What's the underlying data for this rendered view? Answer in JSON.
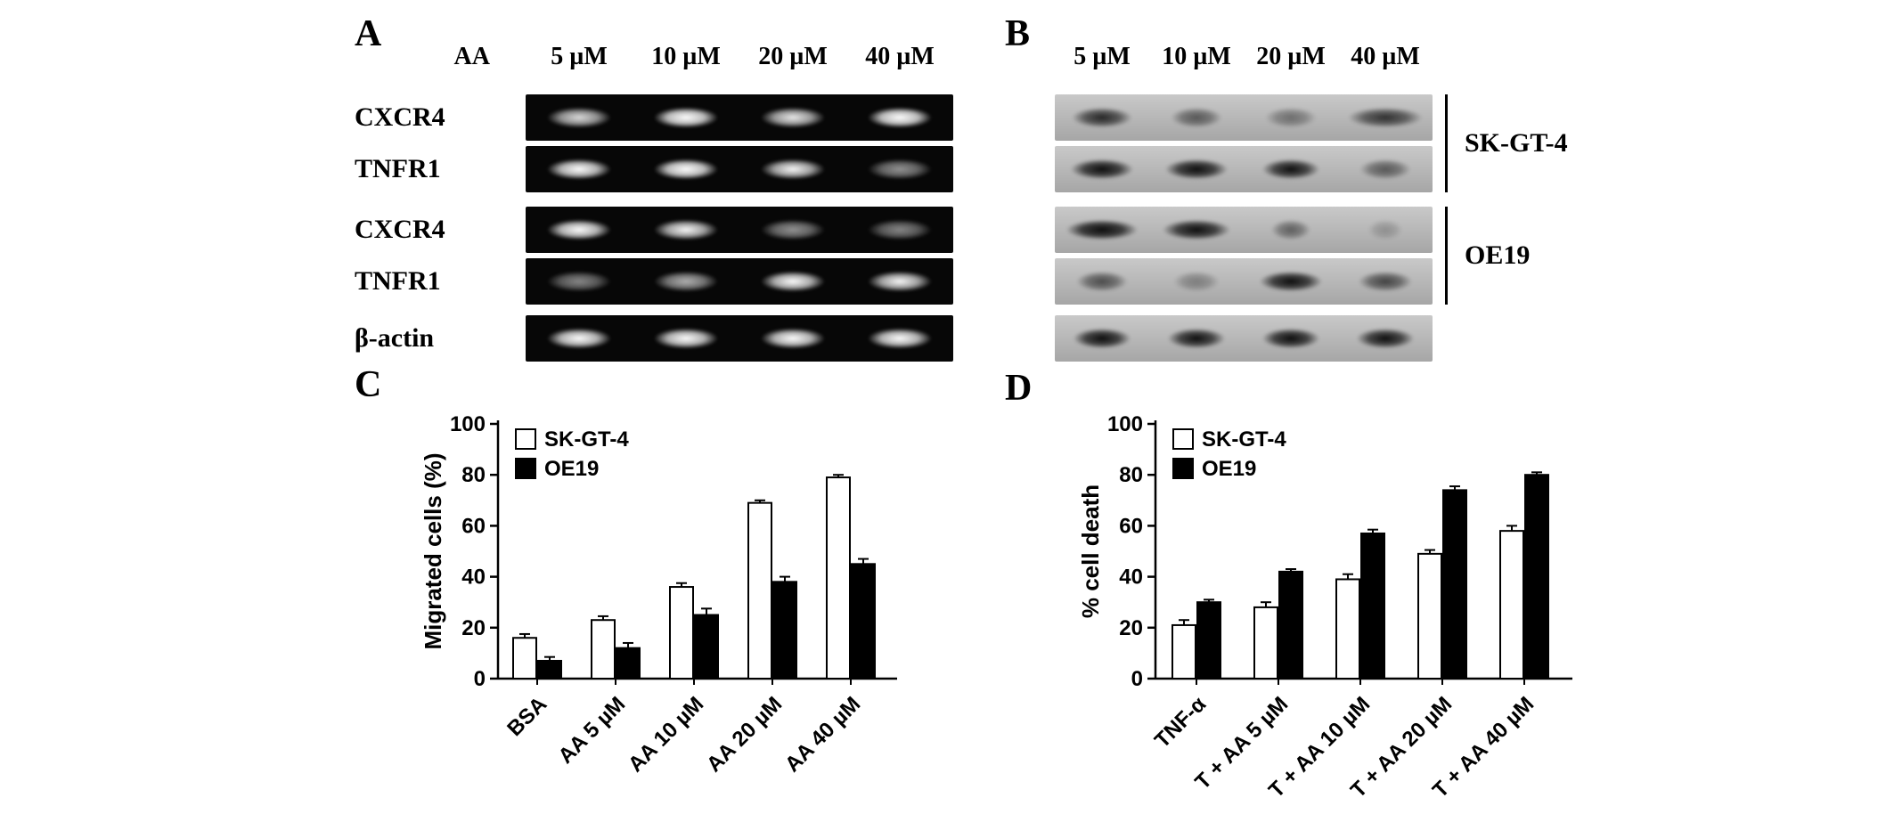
{
  "figure": {
    "background": "#ffffff"
  },
  "panels": {
    "A": {
      "letter": "A",
      "row_header": {
        "prefix": "AA",
        "lanes": [
          "5 µM",
          "10 µM",
          "20 µM",
          "40 µM"
        ]
      },
      "rows": [
        {
          "label": "CXCR4",
          "bands": [
            0.75,
            1.0,
            0.8,
            1.0
          ]
        },
        {
          "label": "TNFR1",
          "bands": [
            0.95,
            1.0,
            0.85,
            0.5
          ]
        },
        {
          "label": "CXCR4",
          "bands": [
            0.95,
            0.85,
            0.5,
            0.45
          ]
        },
        {
          "label": "TNFR1",
          "bands": [
            0.45,
            0.6,
            0.9,
            0.85
          ]
        },
        {
          "label": "β-actin",
          "bands": [
            0.95,
            0.95,
            0.95,
            0.95
          ]
        }
      ]
    },
    "B": {
      "letter": "B",
      "lanes": [
        "5 µM",
        "10 µM",
        "20 µM",
        "40 µM"
      ],
      "rows": [
        {
          "bands": [
            0.75,
            0.5,
            0.38,
            0.7
          ],
          "spread": [
            1.05,
            0.9,
            0.9,
            1.3
          ]
        },
        {
          "bands": [
            0.95,
            0.95,
            0.9,
            0.5
          ],
          "spread": [
            1.1,
            1.1,
            1.0,
            0.9
          ]
        },
        {
          "bands": [
            1.0,
            0.95,
            0.45,
            0.2
          ],
          "spread": [
            1.25,
            1.2,
            0.7,
            0.6
          ]
        },
        {
          "bands": [
            0.55,
            0.3,
            0.95,
            0.6
          ],
          "spread": [
            0.9,
            0.8,
            1.1,
            0.95
          ]
        },
        {
          "bands": [
            0.95,
            0.9,
            0.95,
            0.9
          ],
          "spread": [
            1.0,
            1.0,
            1.0,
            1.0
          ]
        }
      ],
      "group_labels": [
        "SK-GT-4",
        "OE19"
      ]
    },
    "C": {
      "letter": "C"
    },
    "D": {
      "letter": "D"
    }
  },
  "chart_data": [
    {
      "id": "C",
      "type": "bar",
      "title": "",
      "xlabel": "",
      "ylabel": "Migrated cells (%)",
      "ylim": [
        0,
        100
      ],
      "yticks": [
        0,
        20,
        40,
        60,
        80,
        100
      ],
      "grid": false,
      "legend_position": "top-left",
      "categories": [
        "BSA",
        "AA 5 µM",
        "AA 10 µM",
        "AA 20 µM",
        "AA 40 µM"
      ],
      "series": [
        {
          "name": "SK-GT-4",
          "fill": "#ffffff",
          "values": [
            16,
            23,
            36,
            69,
            79
          ],
          "errors": [
            1.5,
            1.5,
            1.5,
            1.0,
            1.0
          ]
        },
        {
          "name": "OE19",
          "fill": "#000000",
          "values": [
            7,
            12,
            25,
            38,
            45
          ],
          "errors": [
            1.5,
            2.0,
            2.5,
            2.0,
            2.0
          ]
        }
      ]
    },
    {
      "id": "D",
      "type": "bar",
      "title": "",
      "xlabel": "",
      "ylabel": "% cell death",
      "ylim": [
        0,
        100
      ],
      "yticks": [
        0,
        20,
        40,
        60,
        80,
        100
      ],
      "grid": false,
      "legend_position": "top-left",
      "categories": [
        "TNF-α",
        "T + AA 5 µM",
        "T + AA 10 µM",
        "T + AA 20 µM",
        "T + AA 40 µM"
      ],
      "series": [
        {
          "name": "SK-GT-4",
          "fill": "#ffffff",
          "values": [
            21,
            28,
            39,
            49,
            58
          ],
          "errors": [
            2.0,
            2.0,
            2.0,
            1.5,
            2.0
          ]
        },
        {
          "name": "OE19",
          "fill": "#000000",
          "values": [
            30,
            42,
            57,
            74,
            80
          ],
          "errors": [
            1.0,
            1.0,
            1.5,
            1.5,
            1.0
          ]
        }
      ]
    }
  ]
}
